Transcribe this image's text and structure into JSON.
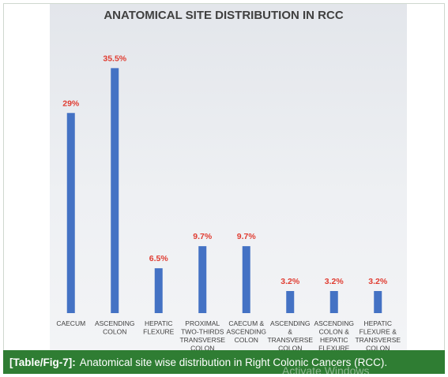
{
  "chart_data": {
    "type": "bar",
    "title": "ANATOMICAL SITE DISTRIBUTION IN RCC",
    "categories": [
      [
        "CAECUM"
      ],
      [
        "ASCENDING",
        "COLON"
      ],
      [
        "HEPATIC",
        "FLEXURE"
      ],
      [
        "PROXIMAL",
        "TWO-THIRDS",
        "TRANSVERSE",
        "COLON"
      ],
      [
        "CAECUM &",
        "ASCENDING",
        "COLON"
      ],
      [
        "ASCENDING",
        "&",
        "TRANSVERSE",
        "COLON"
      ],
      [
        "ASCENDING",
        "COLON &",
        "HEPATIC",
        "FLEXURE"
      ],
      [
        "HEPATIC",
        "FLEXURE &",
        "TRANSVERSE",
        "COLON"
      ]
    ],
    "values": [
      29,
      35.5,
      6.5,
      9.7,
      9.7,
      3.2,
      3.2,
      3.2
    ],
    "data_labels": [
      "29%",
      "35.5%",
      "6.5%",
      "9.7%",
      "9.7%",
      "3.2%",
      "3.2%",
      "3.2%"
    ],
    "ylim": [
      0,
      40
    ],
    "grid": false,
    "colors": {
      "bar": "#4472c4",
      "label": "#e03c31",
      "title": "#404040",
      "tick": "#404040"
    }
  },
  "caption": {
    "label": "[Table/Fig-7]:",
    "text": "Anatomical site wise distribution in Right Colonic Cancers (RCC)."
  },
  "watermark": "Activate Windows"
}
